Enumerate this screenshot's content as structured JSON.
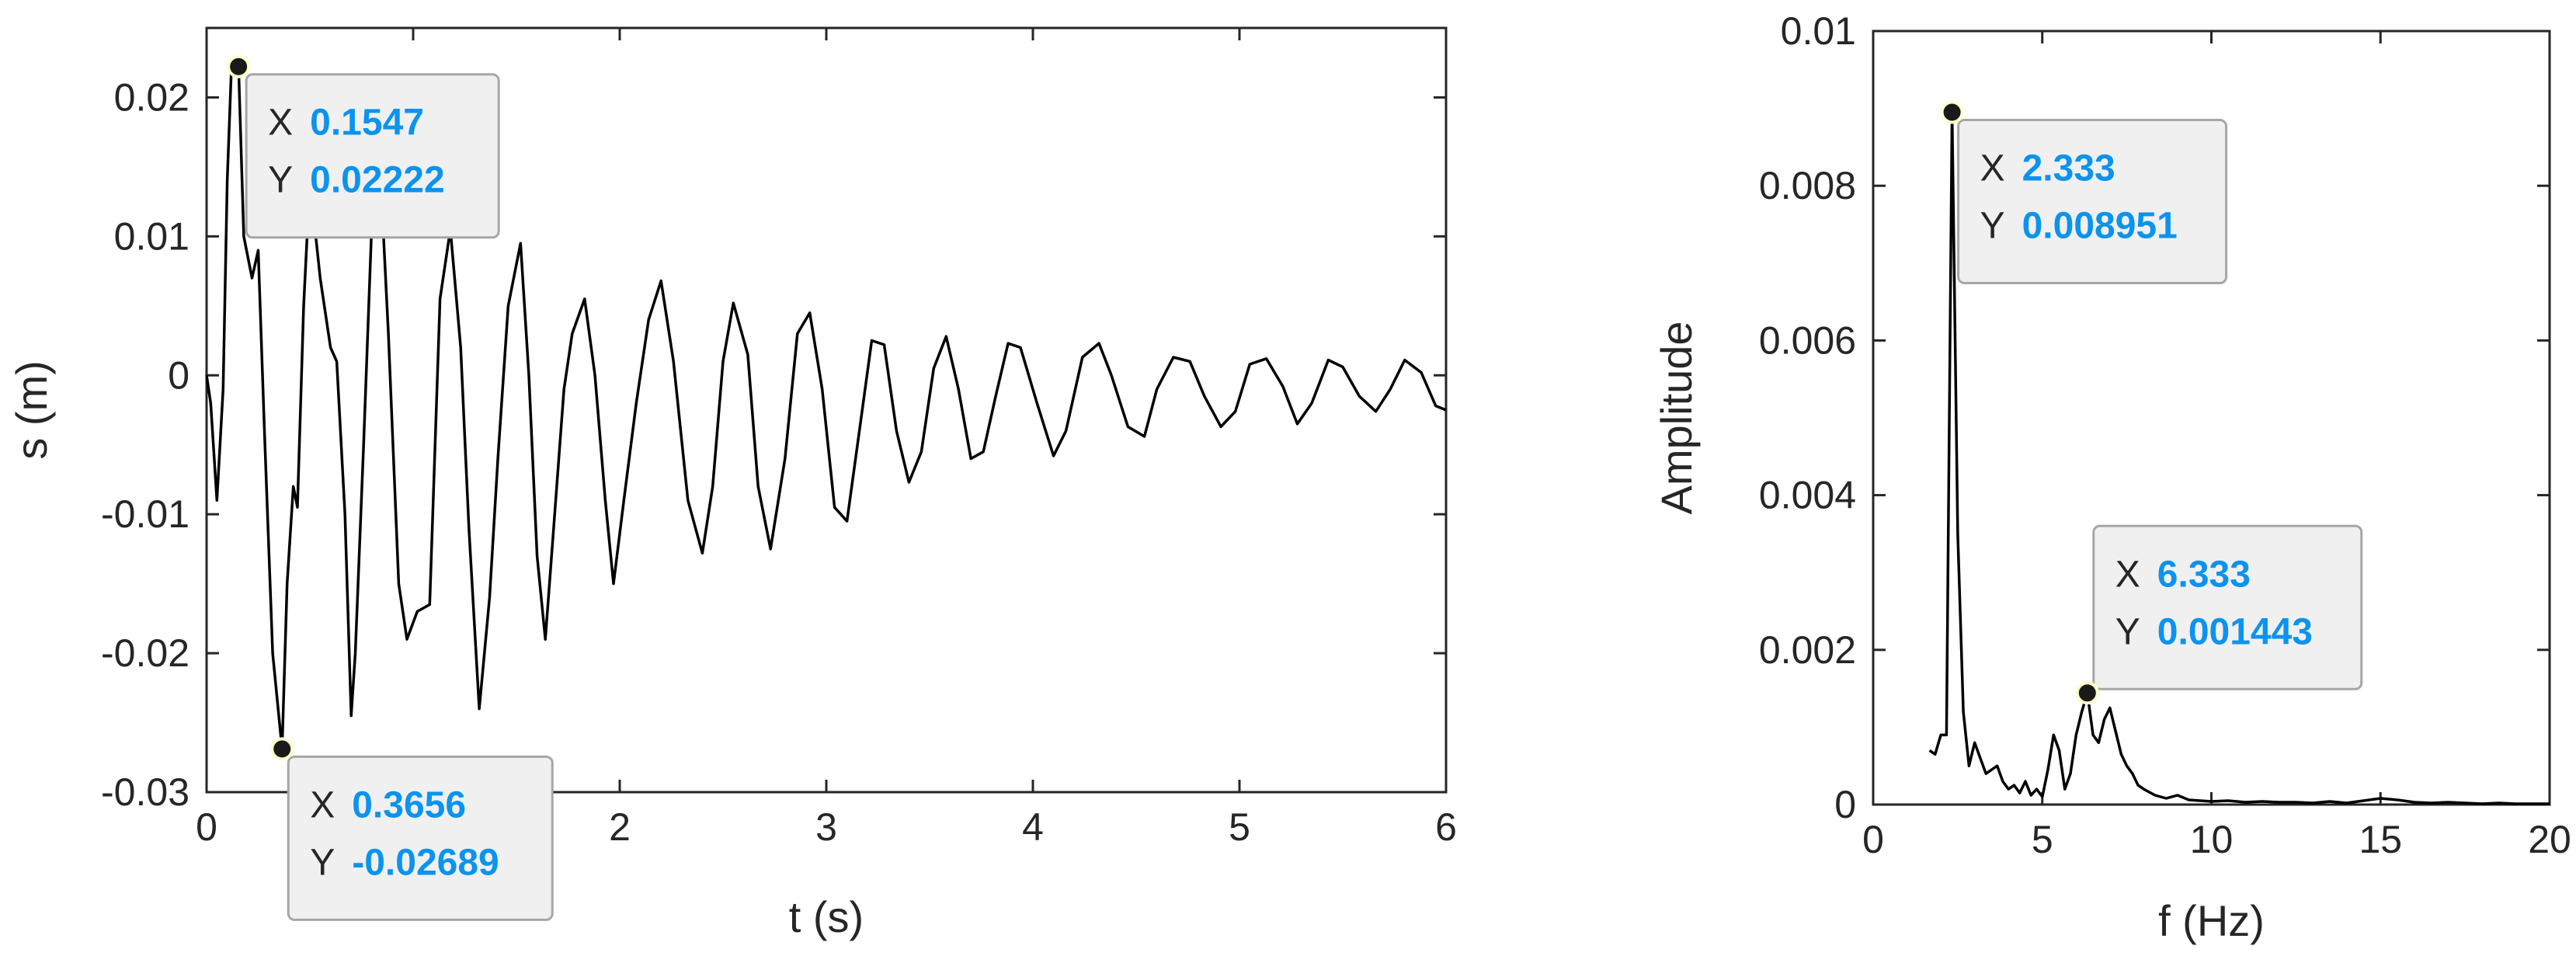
{
  "chart_data": [
    {
      "type": "line",
      "xlabel": "t (s)",
      "ylabel": "s (m)",
      "xlim": [
        0,
        6
      ],
      "ylim": [
        -0.03,
        0.025
      ],
      "xticks": [
        0,
        1,
        2,
        3,
        4,
        5,
        6
      ],
      "xtick_labels": [
        "0",
        "1",
        "2",
        "3",
        "4",
        "5",
        "6"
      ],
      "yticks": [
        0.02,
        0.01,
        0,
        -0.01,
        -0.02,
        -0.03
      ],
      "ytick_labels": [
        "0.02",
        "0.01",
        "0",
        "-0.01",
        "-0.02",
        "-0.03"
      ],
      "line_color": "#000000",
      "series": [
        {
          "x": [
            0,
            0.02,
            0.05,
            0.08,
            0.1,
            0.12,
            0.1547,
            0.18,
            0.22,
            0.25,
            0.28,
            0.32,
            0.3656,
            0.39,
            0.42,
            0.44,
            0.47,
            0.5,
            0.55,
            0.6,
            0.63,
            0.67,
            0.7,
            0.72,
            0.76,
            0.8,
            0.84,
            0.88,
            0.93,
            0.97,
            1.02,
            1.08,
            1.13,
            1.18,
            1.23,
            1.27,
            1.32,
            1.37,
            1.41,
            1.46,
            1.52,
            1.56,
            1.6,
            1.64,
            1.68,
            1.73,
            1.77,
            1.83,
            1.88,
            1.93,
            1.97,
            2.02,
            2.08,
            2.14,
            2.2,
            2.26,
            2.33,
            2.4,
            2.45,
            2.5,
            2.55,
            2.62,
            2.67,
            2.73,
            2.8,
            2.86,
            2.92,
            2.98,
            3.04,
            3.1,
            3.16,
            3.22,
            3.28,
            3.34,
            3.4,
            3.46,
            3.52,
            3.58,
            3.64,
            3.7,
            3.76,
            3.82,
            3.88,
            3.94,
            4.02,
            4.1,
            4.16,
            4.24,
            4.32,
            4.38,
            4.46,
            4.54,
            4.6,
            4.68,
            4.76,
            4.83,
            4.91,
            4.98,
            5.05,
            5.13,
            5.21,
            5.28,
            5.35,
            5.43,
            5.5,
            5.58,
            5.66,
            5.73,
            5.8,
            5.88,
            5.95,
            6.0
          ],
          "y": [
            0,
            -0.002,
            -0.009,
            -0.001,
            0.014,
            0.022,
            0.02222,
            0.01,
            0.007,
            0.009,
            -0.004,
            -0.02,
            -0.02689,
            -0.015,
            -0.008,
            -0.0095,
            0.005,
            0.014,
            0.007,
            0.002,
            0.001,
            -0.01,
            -0.0245,
            -0.02,
            -0.005,
            0.011,
            0.015,
            0.003,
            -0.015,
            -0.019,
            -0.017,
            -0.0165,
            0.0055,
            0.0105,
            0.002,
            -0.011,
            -0.024,
            -0.016,
            -0.006,
            0.005,
            0.0095,
            0.0,
            -0.013,
            -0.019,
            -0.011,
            -0.001,
            0.003,
            0.0055,
            0.0,
            -0.009,
            -0.015,
            -0.009,
            -0.002,
            0.004,
            0.0068,
            0.001,
            -0.009,
            -0.0128,
            -0.008,
            0.001,
            0.0052,
            0.0015,
            -0.008,
            -0.0125,
            -0.006,
            0.003,
            0.0045,
            -0.001,
            -0.0095,
            -0.0105,
            -0.004,
            0.0025,
            0.0022,
            -0.004,
            -0.0077,
            -0.0055,
            0.0005,
            0.0028,
            -0.001,
            -0.006,
            -0.0055,
            -0.0015,
            0.0023,
            0.002,
            -0.002,
            -0.0058,
            -0.004,
            0.0013,
            0.0023,
            0.0,
            -0.0037,
            -0.0044,
            -0.001,
            0.0013,
            0.001,
            -0.0015,
            -0.0037,
            -0.0026,
            0.0008,
            0.0012,
            -0.0008,
            -0.0035,
            -0.002,
            0.0011,
            0.0006,
            -0.0015,
            -0.0026,
            -0.001,
            0.0011,
            0.0002,
            -0.0022,
            -0.0025
          ]
        }
      ],
      "datatips": [
        {
          "x_label": "X",
          "x_value": "0.1547",
          "y_label": "Y",
          "y_value": "0.02222",
          "x": 0.1547,
          "y": 0.02222,
          "placement": "below-right"
        },
        {
          "x_label": "X",
          "x_value": "0.3656",
          "y_label": "Y",
          "y_value": "-0.02689",
          "x": 0.3656,
          "y": -0.02689,
          "placement": "below-right"
        }
      ]
    },
    {
      "type": "line",
      "xlabel": "f (Hz)",
      "ylabel": "Amplitude",
      "xlim": [
        0,
        20
      ],
      "ylim": [
        0,
        0.01
      ],
      "xticks": [
        0,
        5,
        10,
        15,
        20
      ],
      "xtick_labels": [
        "0",
        "5",
        "10",
        "15",
        "20"
      ],
      "yticks": [
        0.01,
        0.008,
        0.006,
        0.004,
        0.002,
        0
      ],
      "ytick_labels": [
        "0.01",
        "0.008",
        "0.006",
        "0.004",
        "0.002",
        "0"
      ],
      "line_color": "#000000",
      "series": [
        {
          "x": [
            1.667,
            1.833,
            2.0,
            2.167,
            2.333,
            2.5,
            2.667,
            2.833,
            3.0,
            3.167,
            3.333,
            3.5,
            3.667,
            3.833,
            4.0,
            4.167,
            4.333,
            4.5,
            4.667,
            4.833,
            5.0,
            5.167,
            5.333,
            5.5,
            5.667,
            5.833,
            6.0,
            6.167,
            6.333,
            6.5,
            6.667,
            6.833,
            7.0,
            7.167,
            7.333,
            7.5,
            7.667,
            7.833,
            8.0,
            8.333,
            8.667,
            9.0,
            9.333,
            9.667,
            10.0,
            10.5,
            11.0,
            11.5,
            12.0,
            12.5,
            13.0,
            13.5,
            14.0,
            14.5,
            15.0,
            15.5,
            16.0,
            16.5,
            17.0,
            17.5,
            18.0,
            18.5,
            19.0,
            19.5,
            20.0
          ],
          "y": [
            0.0007,
            0.00065,
            0.0009,
            0.0009,
            0.008951,
            0.0035,
            0.0012,
            0.0005,
            0.0008,
            0.0006,
            0.0004,
            0.00045,
            0.0005,
            0.0003,
            0.0002,
            0.00025,
            0.00015,
            0.0003,
            0.00012,
            0.0002,
            0.0001,
            0.00045,
            0.0009,
            0.0007,
            0.0002,
            0.0004,
            0.0009,
            0.0012,
            0.001443,
            0.0009,
            0.0008,
            0.0011,
            0.00125,
            0.00095,
            0.00065,
            0.0005,
            0.0004,
            0.00025,
            0.0002,
            0.00012,
            8e-05,
            0.00012,
            6e-05,
            5e-05,
            4e-05,
            5e-05,
            3e-05,
            4e-05,
            3e-05,
            3e-05,
            2e-05,
            4e-05,
            2e-05,
            5e-05,
            8e-05,
            6e-05,
            3e-05,
            2e-05,
            3e-05,
            2e-05,
            1e-05,
            2e-05,
            1e-05,
            1e-05,
            1e-05
          ]
        }
      ],
      "datatips": [
        {
          "x_label": "X",
          "x_value": "2.333",
          "y_label": "Y",
          "y_value": "0.008951",
          "x": 2.333,
          "y": 0.008951,
          "placement": "below-right"
        },
        {
          "x_label": "X",
          "x_value": "6.333",
          "y_label": "Y",
          "y_value": "0.001443",
          "x": 6.333,
          "y": 0.001443,
          "placement": "above-right"
        }
      ]
    }
  ],
  "colors": {
    "axis": "#262626",
    "line": "#000000",
    "datatip_value": "#0b93ef",
    "datatip_fill": "#f0f0f0",
    "datatip_border": "#a6a6a6",
    "marker_fill": "#1a1a1a",
    "marker_halo": "#ffffcc"
  }
}
